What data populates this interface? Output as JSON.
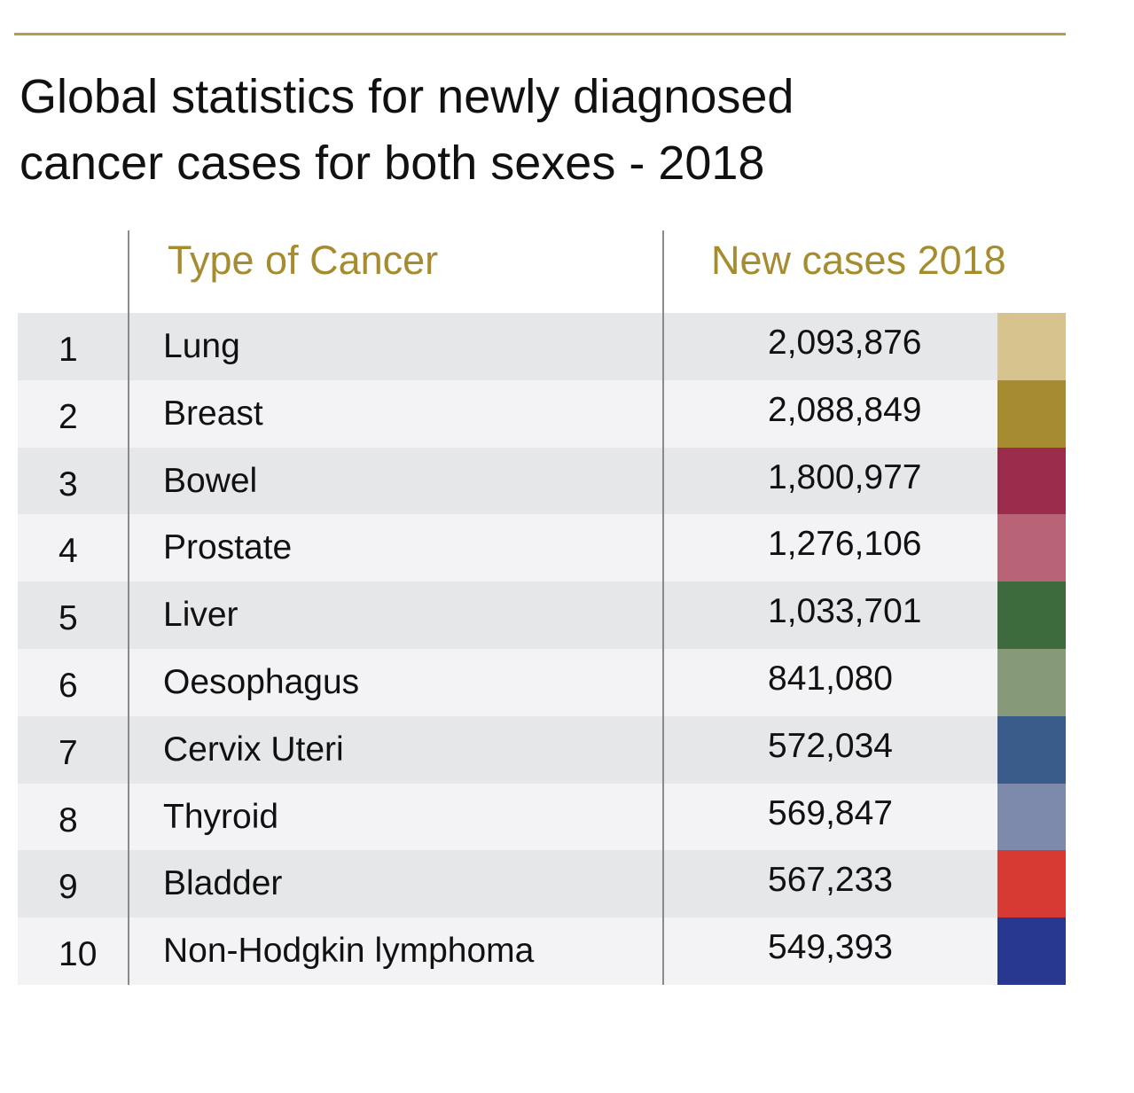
{
  "chart_data": {
    "type": "table",
    "title": "Global statistics for newly diagnosed cancer cases for both sexes - 2018",
    "columns": [
      "",
      "Type of Cancer",
      "New cases 2018"
    ],
    "rows": [
      {
        "rank": "1",
        "type": "Lung",
        "cases": "2,093,876",
        "value": 2093876,
        "color": "#d6c38e"
      },
      {
        "rank": "2",
        "type": "Breast",
        "cases": "2,088,849",
        "value": 2088849,
        "color": "#a68b31"
      },
      {
        "rank": "3",
        "type": "Bowel",
        "cases": "1,800,977",
        "value": 1800977,
        "color": "#9b2c4b"
      },
      {
        "rank": "4",
        "type": "Prostate",
        "cases": "1,276,106",
        "value": 1276106,
        "color": "#b86476"
      },
      {
        "rank": "5",
        "type": "Liver",
        "cases": "1,033,701",
        "value": 1033701,
        "color": "#3d6b3d"
      },
      {
        "rank": "6",
        "type": "Oesophagus",
        "cases": "841,080",
        "value": 841080,
        "color": "#869a7a"
      },
      {
        "rank": "7",
        "type": "Cervix Uteri",
        "cases": "572,034",
        "value": 572034,
        "color": "#3a5c8a"
      },
      {
        "rank": "8",
        "type": "Thyroid",
        "cases": "569,847",
        "value": 569847,
        "color": "#7e8aac"
      },
      {
        "rank": "9",
        "type": "Bladder",
        "cases": "567,233",
        "value": 567233,
        "color": "#d63a33"
      },
      {
        "rank": "10",
        "type": "Non-Hodgkin lymphoma",
        "cases": "549,393",
        "value": 549393,
        "color": "#283890"
      }
    ],
    "header_color": "#a68b2f",
    "rule_color": "#b29c4e"
  },
  "title_line1": "Global statistics for newly diagnosed",
  "title_line2": "cancer cases for both sexes - 2018"
}
